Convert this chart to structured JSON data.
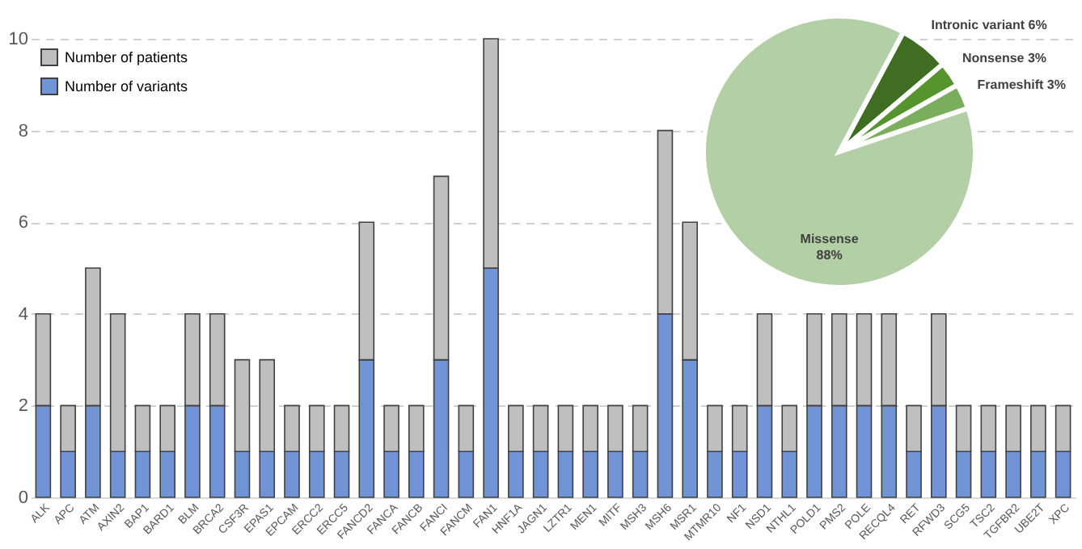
{
  "chart_data": [
    {
      "type": "bar",
      "stacked": true,
      "categories": [
        "ALK",
        "APC",
        "ATM",
        "AXIN2",
        "BAP1",
        "BARD1",
        "BLM",
        "BRCA2",
        "CSF3R",
        "EPAS1",
        "EPCAM",
        "ERCC2",
        "ERCC5",
        "FANCD2",
        "FANCA",
        "FANCB",
        "FANCI",
        "FANCM",
        "FAN1",
        "HNF1A",
        "JAGN1",
        "LZTR1",
        "MEN1",
        "MITF",
        "MSH3",
        "MSH6",
        "MSR1",
        "MTMR10",
        "NF1",
        "NSD1",
        "NTHL1",
        "POLD1",
        "PMS2",
        "POLE",
        "RECQL4",
        "RET",
        "RFWD3",
        "SCG5",
        "TSC2",
        "TGFBR2",
        "UBE2T",
        "XPC"
      ],
      "series": [
        {
          "name": "Number of variants",
          "color": "#7094d6",
          "values": [
            2,
            1,
            2,
            1,
            1,
            1,
            2,
            2,
            1,
            1,
            1,
            1,
            1,
            3,
            1,
            1,
            3,
            1,
            5,
            1,
            1,
            1,
            1,
            1,
            1,
            4,
            3,
            1,
            1,
            2,
            1,
            2,
            2,
            2,
            2,
            1,
            2,
            1,
            1,
            1,
            1,
            1
          ]
        },
        {
          "name": "Number of patients",
          "color": "#bfbfbf",
          "values": [
            2,
            1,
            3,
            3,
            1,
            1,
            2,
            2,
            2,
            2,
            1,
            1,
            1,
            3,
            1,
            1,
            4,
            1,
            5,
            1,
            1,
            1,
            1,
            1,
            1,
            4,
            3,
            1,
            1,
            2,
            1,
            2,
            2,
            2,
            2,
            1,
            2,
            1,
            1,
            1,
            1,
            1
          ]
        }
      ],
      "ylim": [
        0,
        10
      ],
      "yticks": [
        0,
        2,
        4,
        6,
        8,
        10
      ],
      "grid": "y",
      "legend": "top left"
    },
    {
      "type": "pie",
      "categories": [
        "Intronic variant",
        "Nonsense",
        "Frameshift",
        "Missense"
      ],
      "values": [
        6,
        3,
        3,
        88
      ],
      "value_labels": [
        "6%",
        "3%",
        "3%",
        "88%"
      ],
      "colors": [
        "#3f6e22",
        "#56952e",
        "#7aad5c",
        "#b3cfa5"
      ]
    }
  ]
}
